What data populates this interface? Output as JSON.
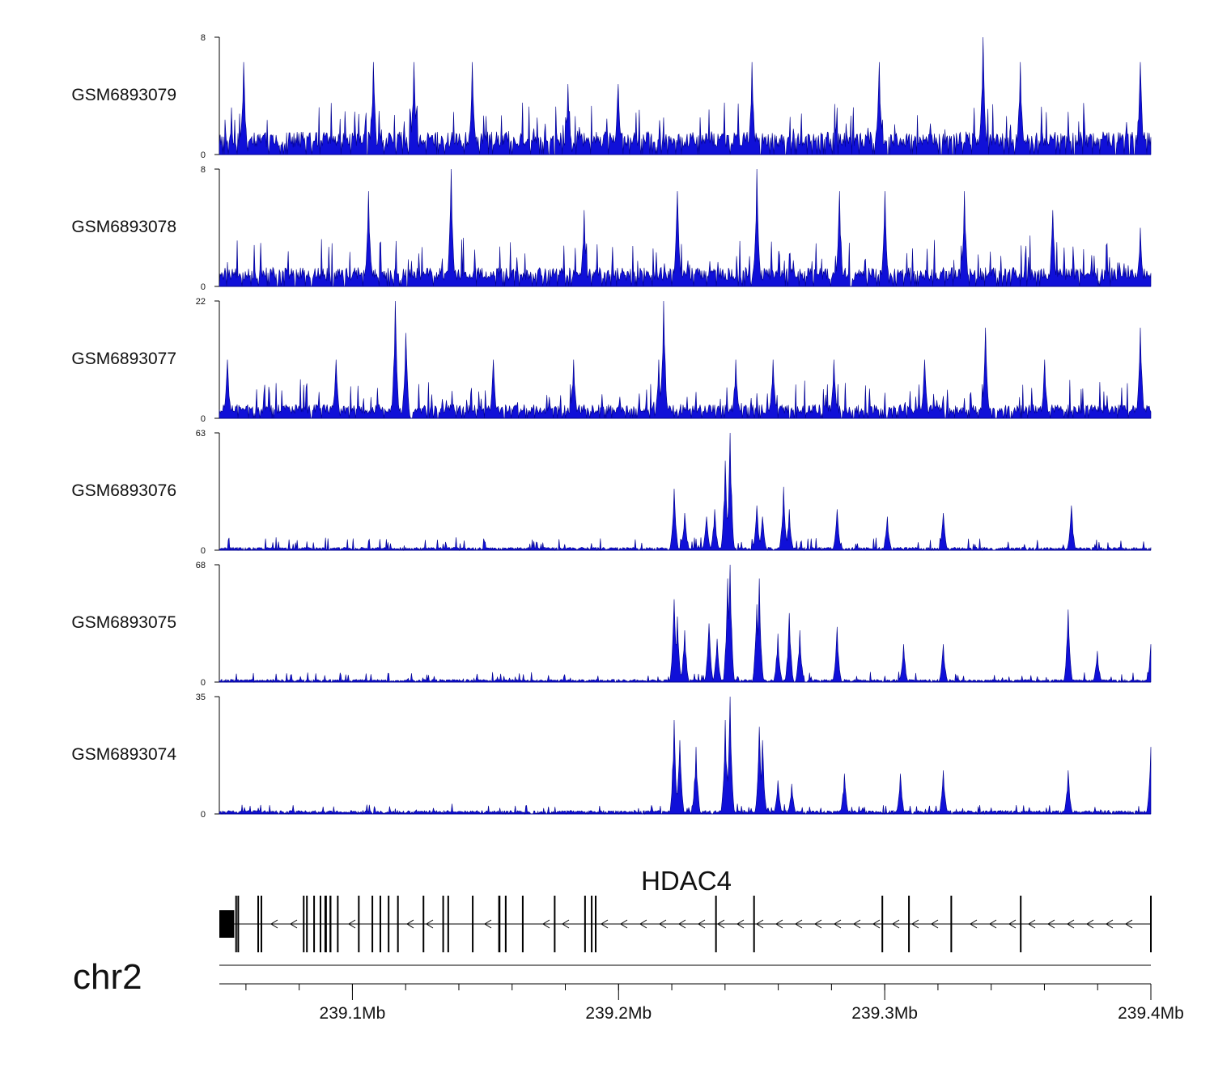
{
  "chart_data": {
    "type": "area",
    "chromosome": "chr2",
    "x_range_mb": [
      239.05,
      239.4
    ],
    "x_ticks": [
      {
        "value": 239.1,
        "label": "239.1Mb"
      },
      {
        "value": 239.2,
        "label": "239.2Mb"
      },
      {
        "value": 239.3,
        "label": "239.3Mb"
      },
      {
        "value": 239.4,
        "label": "239.4Mb"
      }
    ],
    "colors": {
      "signal": "#1010d8",
      "signal_edge": "#00008b",
      "gene": "#000000"
    },
    "tracks": [
      {
        "name": "GSM6893079",
        "ymin": 0,
        "ymax": 8,
        "ymin_label": "0",
        "ymax_label": "8",
        "baseline": 1.2,
        "noise": 1.6,
        "peaks": [
          [
            239.059,
            6.3
          ],
          [
            239.108,
            6.3
          ],
          [
            239.123,
            6.3
          ],
          [
            239.145,
            6.3
          ],
          [
            239.181,
            4.8
          ],
          [
            239.2,
            4.8
          ],
          [
            239.25,
            6.3
          ],
          [
            239.298,
            6.3
          ],
          [
            239.337,
            8.0
          ],
          [
            239.351,
            6.3
          ],
          [
            239.396,
            6.3
          ]
        ]
      },
      {
        "name": "GSM6893078",
        "ymin": 0,
        "ymax": 8,
        "ymin_label": "0",
        "ymax_label": "8",
        "baseline": 1.0,
        "noise": 1.6,
        "peaks": [
          [
            239.106,
            6.5
          ],
          [
            239.137,
            8.0
          ],
          [
            239.187,
            5.2
          ],
          [
            239.222,
            6.5
          ],
          [
            239.252,
            8.0
          ],
          [
            239.283,
            6.5
          ],
          [
            239.3,
            6.5
          ],
          [
            239.33,
            6.5
          ],
          [
            239.363,
            5.2
          ],
          [
            239.396,
            4.0
          ]
        ]
      },
      {
        "name": "GSM6893077",
        "ymin": 0,
        "ymax": 22,
        "ymin_label": "0",
        "ymax_label": "22",
        "baseline": 2.0,
        "noise": 3.5,
        "peaks": [
          [
            239.053,
            11
          ],
          [
            239.094,
            11
          ],
          [
            239.116,
            22
          ],
          [
            239.12,
            16
          ],
          [
            239.153,
            11
          ],
          [
            239.183,
            11
          ],
          [
            239.215,
            11
          ],
          [
            239.217,
            22
          ],
          [
            239.244,
            11
          ],
          [
            239.258,
            11
          ],
          [
            239.281,
            11
          ],
          [
            239.315,
            11
          ],
          [
            239.338,
            17
          ],
          [
            239.36,
            11
          ],
          [
            239.396,
            17
          ]
        ]
      },
      {
        "name": "GSM6893076",
        "ymin": 0,
        "ymax": 63,
        "ymin_label": "0",
        "ymax_label": "63",
        "baseline": 1.2,
        "noise": 4,
        "peaks": [
          [
            239.221,
            33
          ],
          [
            239.225,
            20
          ],
          [
            239.233,
            18
          ],
          [
            239.236,
            22
          ],
          [
            239.24,
            48
          ],
          [
            239.242,
            63
          ],
          [
            239.252,
            24
          ],
          [
            239.254,
            18
          ],
          [
            239.262,
            34
          ],
          [
            239.264,
            22
          ],
          [
            239.282,
            22
          ],
          [
            239.301,
            18
          ],
          [
            239.322,
            20
          ],
          [
            239.37,
            24
          ]
        ]
      },
      {
        "name": "GSM6893075",
        "ymin": 0,
        "ymax": 68,
        "ymin_label": "0",
        "ymax_label": "68",
        "baseline": 1.2,
        "noise": 3,
        "peaks": [
          [
            239.221,
            48
          ],
          [
            239.222,
            38
          ],
          [
            239.225,
            30
          ],
          [
            239.234,
            34
          ],
          [
            239.237,
            25
          ],
          [
            239.241,
            60
          ],
          [
            239.242,
            68
          ],
          [
            239.252,
            45
          ],
          [
            239.253,
            60
          ],
          [
            239.26,
            28
          ],
          [
            239.264,
            40
          ],
          [
            239.268,
            30
          ],
          [
            239.282,
            32
          ],
          [
            239.307,
            22
          ],
          [
            239.322,
            22
          ],
          [
            239.369,
            42
          ],
          [
            239.38,
            18
          ],
          [
            239.4,
            22
          ]
        ]
      },
      {
        "name": "GSM6893074",
        "ymin": 0,
        "ymax": 35,
        "ymin_label": "0",
        "ymax_label": "35",
        "baseline": 0.8,
        "noise": 1.5,
        "peaks": [
          [
            239.221,
            28
          ],
          [
            239.223,
            22
          ],
          [
            239.229,
            20
          ],
          [
            239.24,
            28
          ],
          [
            239.242,
            35
          ],
          [
            239.253,
            26
          ],
          [
            239.254,
            22
          ],
          [
            239.26,
            10
          ],
          [
            239.265,
            9
          ],
          [
            239.285,
            12
          ],
          [
            239.306,
            12
          ],
          [
            239.322,
            13
          ],
          [
            239.369,
            13
          ],
          [
            239.4,
            20
          ]
        ]
      }
    ],
    "gene": {
      "name": "HDAC4",
      "strand": "-",
      "start_mb": 239.05,
      "end_mb": 239.4,
      "exons": [
        {
          "start": 239.05,
          "end": 239.0556,
          "tall": false
        },
        {
          "start": 239.056,
          "end": 239.0562,
          "tall": true
        },
        {
          "start": 239.0568,
          "end": 239.057,
          "tall": true
        },
        {
          "start": 239.0643,
          "end": 239.0646,
          "tall": true
        },
        {
          "start": 239.0655,
          "end": 239.0657,
          "tall": true
        },
        {
          "start": 239.0814,
          "end": 239.0816,
          "tall": true
        },
        {
          "start": 239.0826,
          "end": 239.0828,
          "tall": true
        },
        {
          "start": 239.0853,
          "end": 239.0855,
          "tall": true
        },
        {
          "start": 239.0877,
          "end": 239.0879,
          "tall": true
        },
        {
          "start": 239.0895,
          "end": 239.0904,
          "tall": true
        },
        {
          "start": 239.0914,
          "end": 239.0921,
          "tall": true
        },
        {
          "start": 239.0942,
          "end": 239.0948,
          "tall": true
        },
        {
          "start": 239.1021,
          "end": 239.1023,
          "tall": true
        },
        {
          "start": 239.1072,
          "end": 239.1074,
          "tall": true
        },
        {
          "start": 239.1102,
          "end": 239.1104,
          "tall": true
        },
        {
          "start": 239.1133,
          "end": 239.1135,
          "tall": true
        },
        {
          "start": 239.1168,
          "end": 239.117,
          "tall": true
        },
        {
          "start": 239.1264,
          "end": 239.1266,
          "tall": true
        },
        {
          "start": 239.1338,
          "end": 239.134,
          "tall": true
        },
        {
          "start": 239.1357,
          "end": 239.1359,
          "tall": true
        },
        {
          "start": 239.1449,
          "end": 239.1451,
          "tall": true
        },
        {
          "start": 239.1548,
          "end": 239.1556,
          "tall": true
        },
        {
          "start": 239.1573,
          "end": 239.1575,
          "tall": true
        },
        {
          "start": 239.1637,
          "end": 239.1639,
          "tall": true
        },
        {
          "start": 239.1757,
          "end": 239.1759,
          "tall": true
        },
        {
          "start": 239.1871,
          "end": 239.1877,
          "tall": true
        },
        {
          "start": 239.1896,
          "end": 239.1898,
          "tall": true
        },
        {
          "start": 239.1911,
          "end": 239.1913,
          "tall": true
        },
        {
          "start": 239.2363,
          "end": 239.2365,
          "tall": true
        },
        {
          "start": 239.2506,
          "end": 239.2508,
          "tall": true
        },
        {
          "start": 239.2988,
          "end": 239.2994,
          "tall": true
        },
        {
          "start": 239.3088,
          "end": 239.309,
          "tall": true
        },
        {
          "start": 239.3247,
          "end": 239.3253,
          "tall": true
        },
        {
          "start": 239.3508,
          "end": 239.351,
          "tall": true
        },
        {
          "start": 239.3997,
          "end": 239.4,
          "tall": true
        }
      ]
    }
  }
}
